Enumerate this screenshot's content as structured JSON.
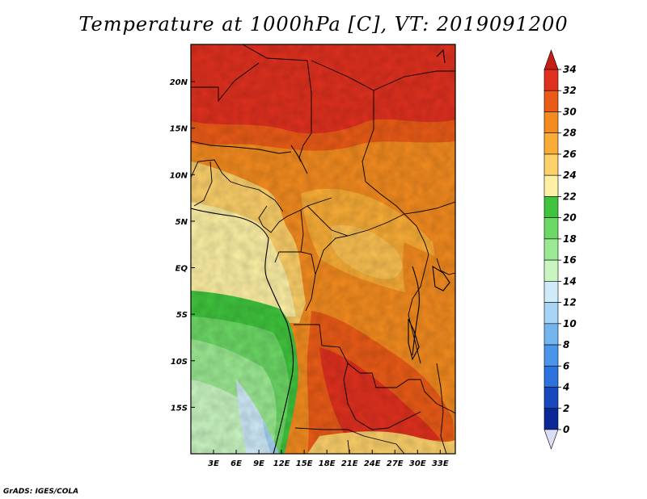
{
  "title": "Temperature at 1000hPa [C], VT: 2019091200",
  "credit": "GrADS: IGES/COLA",
  "map": {
    "lon_range": [
      0,
      35
    ],
    "lat_range": [
      -20,
      24
    ],
    "lon_ticks": [
      "3E",
      "6E",
      "9E",
      "12E",
      "15E",
      "18E",
      "21E",
      "24E",
      "27E",
      "30E",
      "33E"
    ],
    "lat_ticks": [
      "20N",
      "15N",
      "10N",
      "5N",
      "EQ",
      "5S",
      "10S",
      "15S"
    ]
  },
  "colorbar": {
    "levels": [
      "34",
      "32",
      "30",
      "28",
      "26",
      "24",
      "22",
      "20",
      "18",
      "16",
      "14",
      "12",
      "10",
      "8",
      "6",
      "4",
      "2",
      "0"
    ],
    "colors": [
      "#e0301e",
      "#ea5b17",
      "#f38b1f",
      "#f9ad36",
      "#fcd06a",
      "#fdf0a4",
      "#3fc43d",
      "#6cd865",
      "#9be992",
      "#c8f5c0",
      "#cfeaf9",
      "#a6d5f6",
      "#74b4ef",
      "#4a94ea",
      "#2c72dc",
      "#1848bd",
      "#0b2896",
      "#08085e"
    ],
    "top_arrow": "#c41f14",
    "bottom_arrow": "#dcdcf5"
  }
}
